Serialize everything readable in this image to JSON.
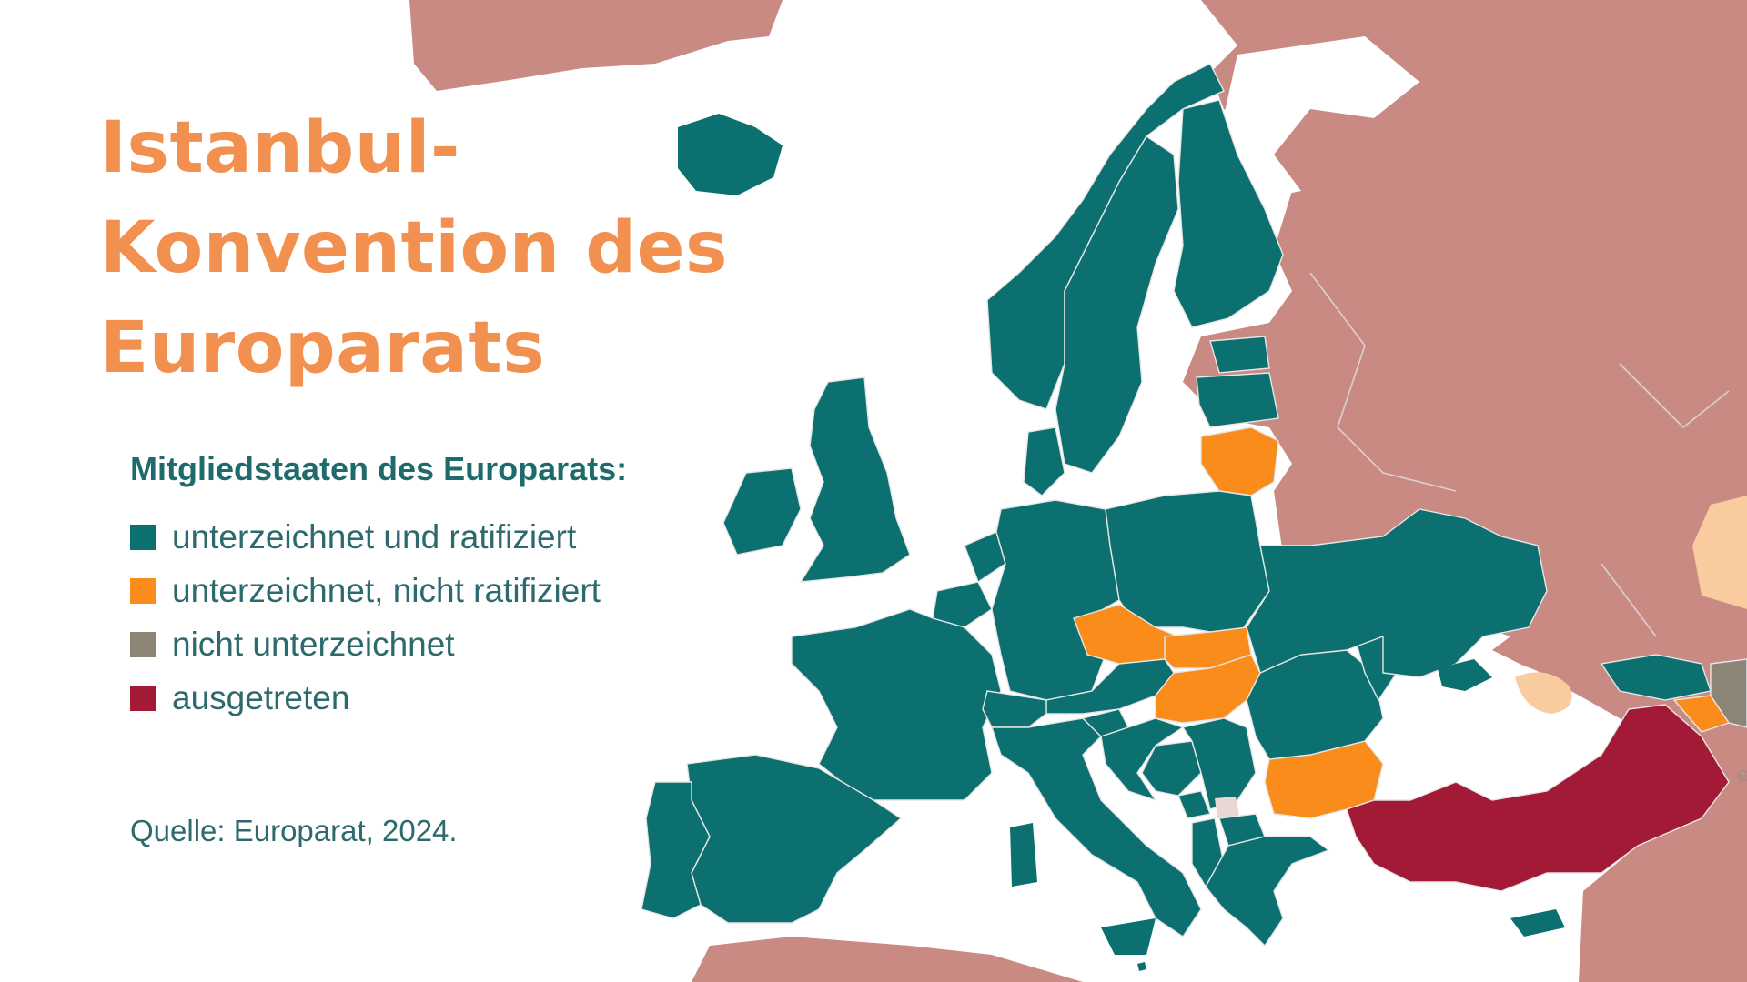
{
  "title": "Istanbul-\nKonvention des\nEuroparats",
  "legend": {
    "heading": "Mitgliedstaaten des Europarats:",
    "items": [
      {
        "key": "ratified",
        "label": "unterzeichnet und ratifiziert",
        "color": "#0d7070"
      },
      {
        "key": "signed_not_ratified",
        "label": "unterzeichnet, nicht ratifiziert",
        "color": "#f98c1b"
      },
      {
        "key": "not_signed",
        "label": "nicht unterzeichnet",
        "color": "#8c8474"
      },
      {
        "key": "withdrawn",
        "label": "ausgetreten",
        "color": "#a31a37"
      }
    ]
  },
  "source": "Quelle: Europarat, 2024.",
  "credit": "© ...",
  "map": {
    "non_member_color": "#c98a84",
    "non_member_light_color": "#f9cc9f",
    "countries": [
      {
        "name": "Island",
        "status": "ratified"
      },
      {
        "name": "Norwegen",
        "status": "ratified"
      },
      {
        "name": "Schweden",
        "status": "ratified"
      },
      {
        "name": "Finnland",
        "status": "ratified"
      },
      {
        "name": "Estland",
        "status": "ratified"
      },
      {
        "name": "Lettland",
        "status": "ratified"
      },
      {
        "name": "Litauen",
        "status": "signed_not_ratified"
      },
      {
        "name": "Vereinigtes Königreich",
        "status": "ratified"
      },
      {
        "name": "Irland",
        "status": "ratified"
      },
      {
        "name": "Dänemark",
        "status": "ratified"
      },
      {
        "name": "Niederlande",
        "status": "ratified"
      },
      {
        "name": "Belgien",
        "status": "ratified"
      },
      {
        "name": "Luxemburg",
        "status": "ratified"
      },
      {
        "name": "Frankreich",
        "status": "ratified"
      },
      {
        "name": "Spanien",
        "status": "ratified"
      },
      {
        "name": "Portugal",
        "status": "ratified"
      },
      {
        "name": "Deutschland",
        "status": "ratified"
      },
      {
        "name": "Polen",
        "status": "ratified"
      },
      {
        "name": "Tschechien",
        "status": "signed_not_ratified"
      },
      {
        "name": "Slowakei",
        "status": "signed_not_ratified"
      },
      {
        "name": "Ungarn",
        "status": "signed_not_ratified"
      },
      {
        "name": "Österreich",
        "status": "ratified"
      },
      {
        "name": "Schweiz",
        "status": "ratified"
      },
      {
        "name": "Italien",
        "status": "ratified"
      },
      {
        "name": "Slowenien",
        "status": "ratified"
      },
      {
        "name": "Kroatien",
        "status": "ratified"
      },
      {
        "name": "Bosnien und Herzegowina",
        "status": "ratified"
      },
      {
        "name": "Serbien",
        "status": "ratified"
      },
      {
        "name": "Montenegro",
        "status": "ratified"
      },
      {
        "name": "Albanien",
        "status": "ratified"
      },
      {
        "name": "Nordmazedonien",
        "status": "ratified"
      },
      {
        "name": "Griechenland",
        "status": "ratified"
      },
      {
        "name": "Bulgarien",
        "status": "signed_not_ratified"
      },
      {
        "name": "Rumänien",
        "status": "ratified"
      },
      {
        "name": "Moldau",
        "status": "ratified"
      },
      {
        "name": "Ukraine",
        "status": "ratified"
      },
      {
        "name": "Georgien",
        "status": "ratified"
      },
      {
        "name": "Armenien",
        "status": "signed_not_ratified"
      },
      {
        "name": "Aserbaidschan",
        "status": "not_signed"
      },
      {
        "name": "Türkei",
        "status": "withdrawn"
      },
      {
        "name": "Zypern",
        "status": "ratified"
      },
      {
        "name": "Malta",
        "status": "ratified"
      }
    ]
  }
}
